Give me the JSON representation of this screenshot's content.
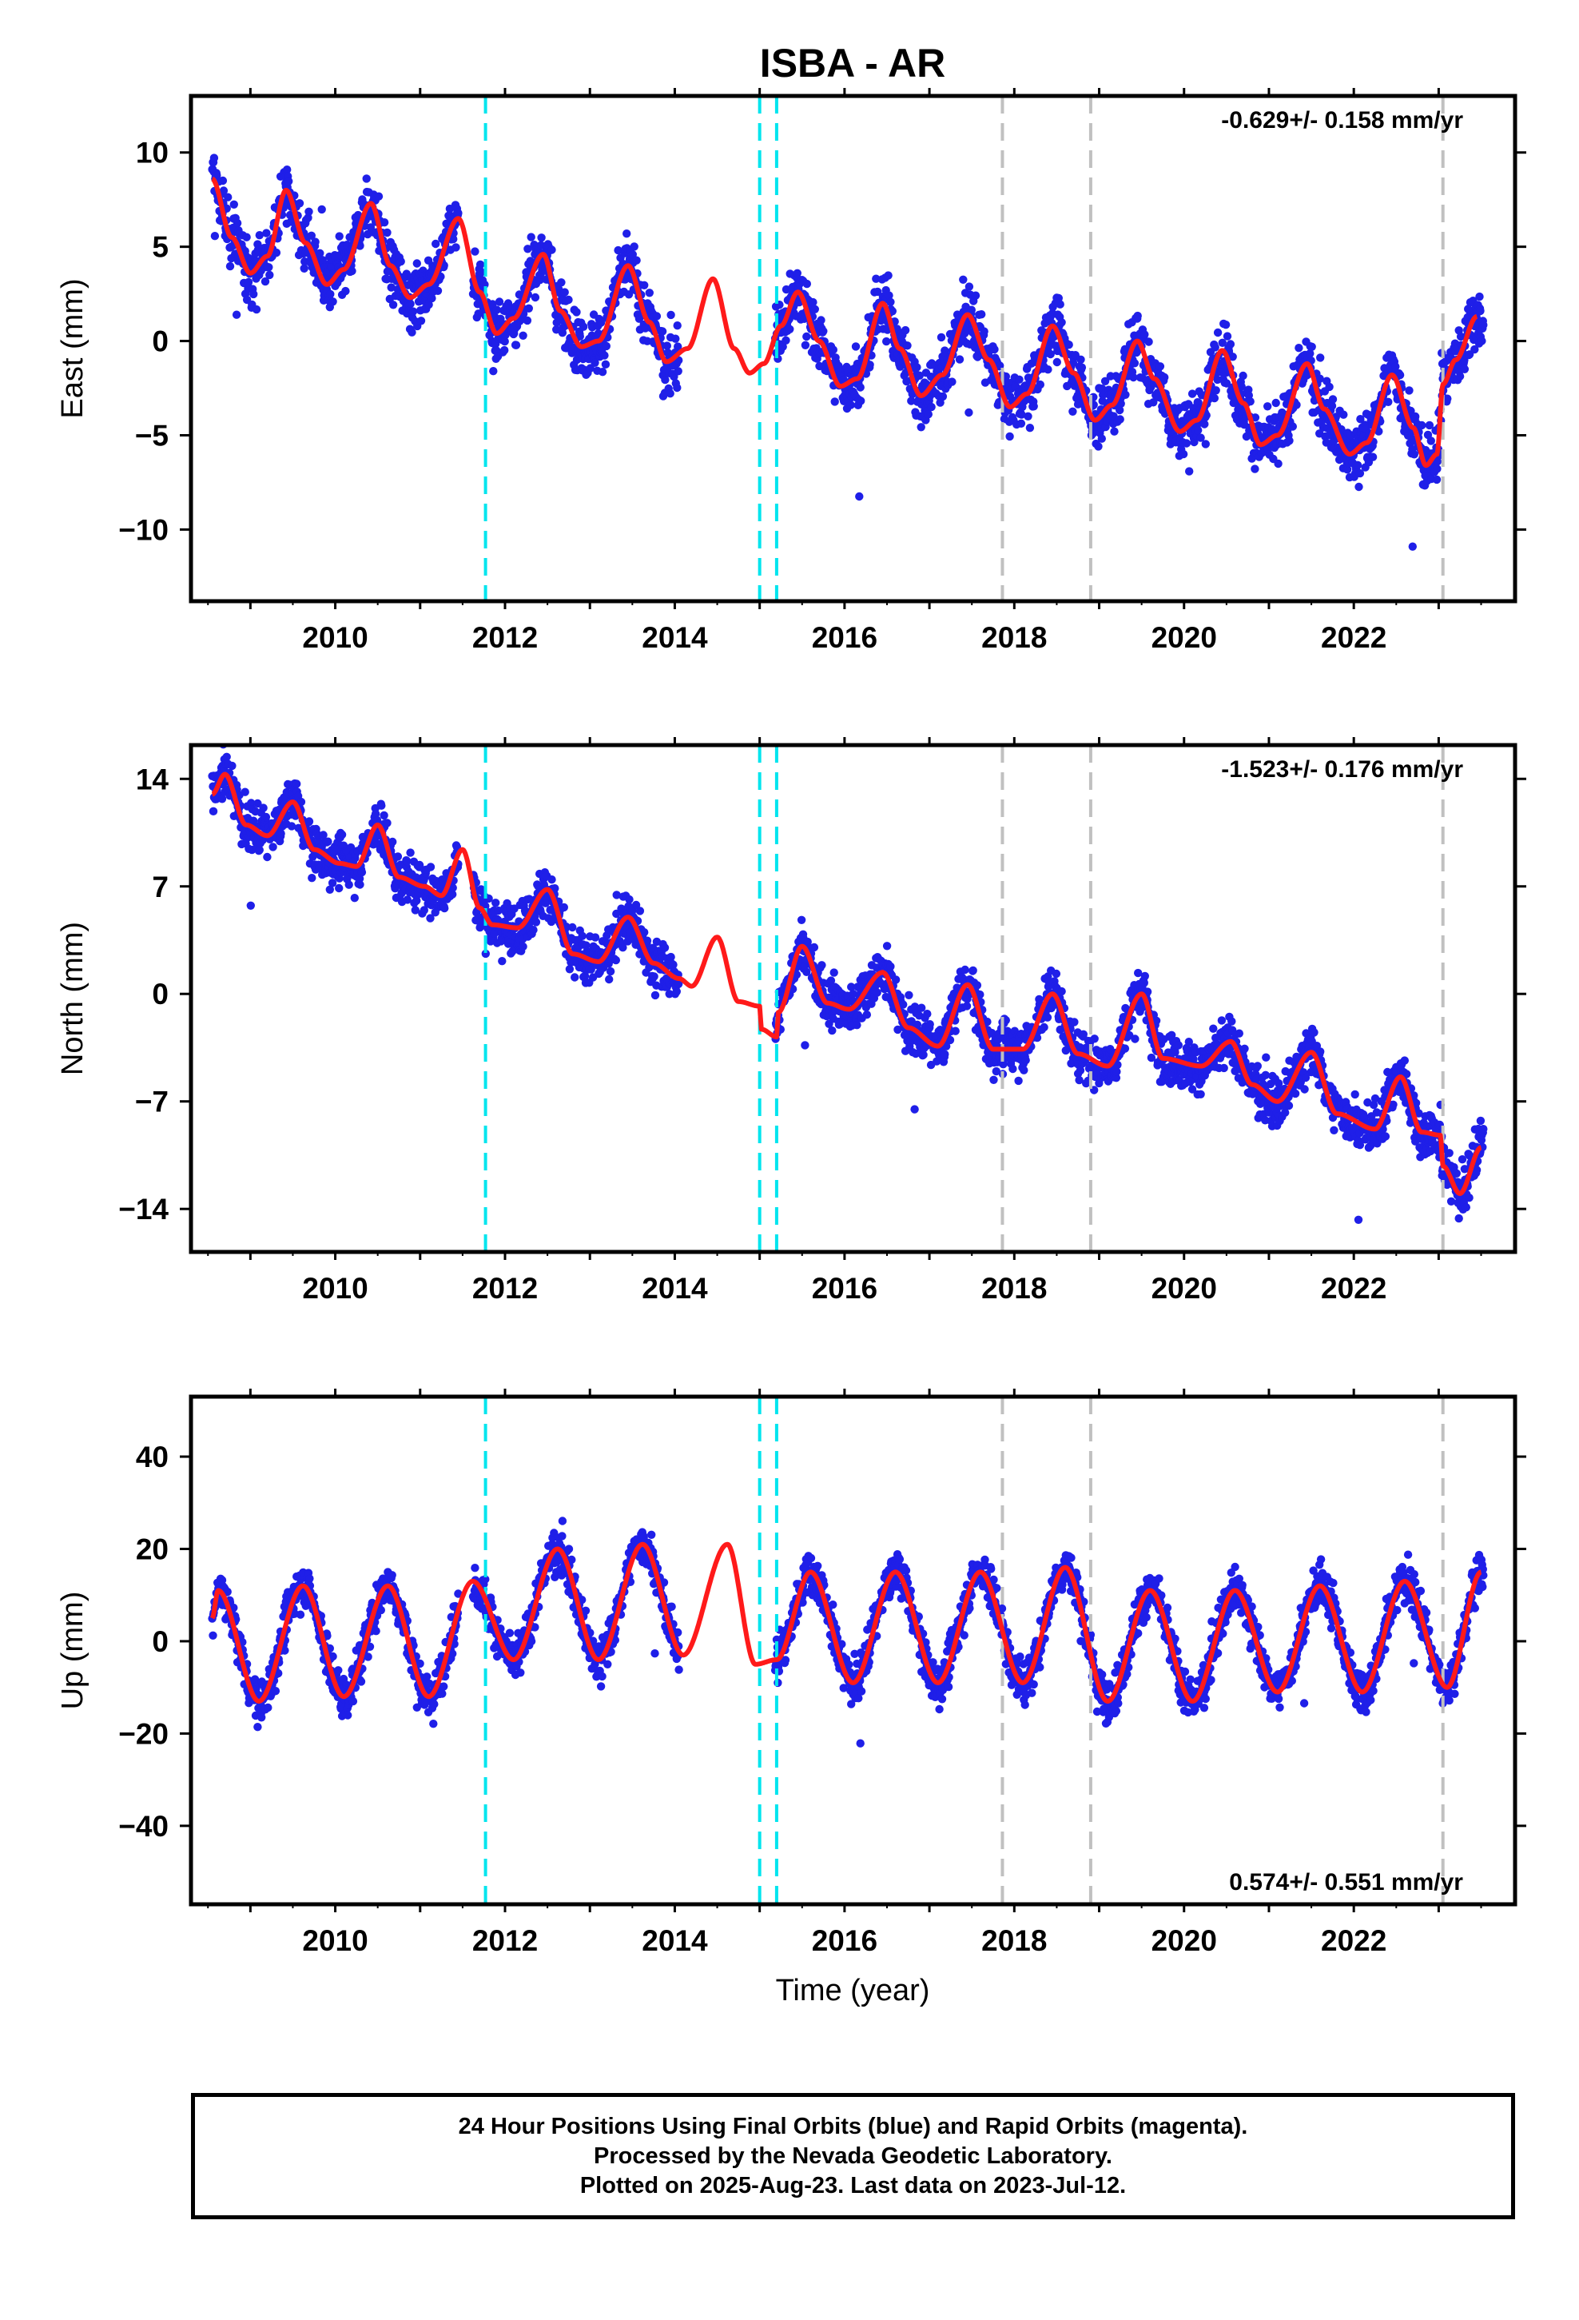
{
  "title": "ISBA - AR",
  "xlabel": "Time (year)",
  "colors": {
    "final_points": "#1f1fe8",
    "model_curve": "#ff1a1a",
    "equipment_change": "#00e5ee",
    "other_event": "#c0c0c0"
  },
  "chart_data": [
    {
      "type": "scatter",
      "ylabel": "East (mm)",
      "rate_text": "-0.629+/- 0.158 mm/yr",
      "rate_position": "top-right",
      "ylim": [
        -13.8,
        13
      ],
      "xlim": [
        2008.3,
        2023.9
      ],
      "xticks": [
        "2010",
        "2012",
        "2014",
        "2016",
        "2018",
        "2020",
        "2022"
      ],
      "yticks": [
        "10",
        "5",
        "0",
        "−5",
        "−10"
      ],
      "ytick_values": [
        10,
        5,
        0,
        -5,
        -10
      ],
      "model": {
        "x": [
          2008.55,
          2008.78,
          2009.0,
          2009.2,
          2009.42,
          2009.65,
          2009.9,
          2010.1,
          2010.42,
          2010.65,
          2010.88,
          2011.1,
          2011.45,
          2011.7,
          2011.9,
          2012.1,
          2012.45,
          2012.65,
          2012.9,
          2013.1,
          2013.45,
          2013.7,
          2013.9,
          2014.15,
          2014.45,
          2014.7,
          2014.88,
          2015.05,
          2015.25,
          2015.45,
          2015.7,
          2015.95,
          2016.15,
          2016.45,
          2016.65,
          2016.9,
          2017.15,
          2017.45,
          2017.7,
          2017.95,
          2018.15,
          2018.45,
          2018.7,
          2018.95,
          2019.15,
          2019.45,
          2019.65,
          2019.95,
          2020.15,
          2020.45,
          2020.7,
          2020.9,
          2021.1,
          2021.45,
          2021.65,
          2021.95,
          2022.15,
          2022.45,
          2022.7,
          2022.85,
          2022.98,
          2023.05,
          2023.2,
          2023.45
        ],
        "y": [
          8.6,
          5.5,
          3.6,
          4.5,
          8.0,
          5.2,
          3.0,
          3.8,
          7.3,
          4.0,
          2.3,
          3.0,
          6.5,
          2.6,
          0.4,
          1.2,
          4.6,
          1.6,
          -0.3,
          0.0,
          4.0,
          1.0,
          -1.1,
          -0.4,
          3.3,
          -0.4,
          -1.7,
          -1.2,
          0.8,
          2.6,
          0.0,
          -2.4,
          -2.0,
          2.0,
          -0.4,
          -2.9,
          -1.8,
          1.4,
          -1.0,
          -3.5,
          -2.8,
          0.8,
          -1.7,
          -4.2,
          -3.4,
          0.0,
          -2.0,
          -4.8,
          -4.2,
          -0.5,
          -3.3,
          -5.5,
          -5.0,
          -1.2,
          -3.6,
          -6.0,
          -5.4,
          -1.8,
          -4.6,
          -6.6,
          -6.0,
          -2.3,
          -1.0,
          1.3
        ]
      },
      "events_equipment": [
        2011.77,
        2015.0,
        2015.2
      ],
      "events_other": [
        2017.86,
        2018.9,
        2023.05
      ]
    },
    {
      "type": "scatter",
      "ylabel": "North (mm)",
      "rate_text": "-1.523+/- 0.176 mm/yr",
      "rate_position": "top-right",
      "ylim": [
        -16.8,
        16.2
      ],
      "xlim": [
        2008.3,
        2023.9
      ],
      "xticks": [
        "2010",
        "2012",
        "2014",
        "2016",
        "2018",
        "2020",
        "2022"
      ],
      "yticks": [
        "14",
        "7",
        "0",
        "−7",
        "−14"
      ],
      "ytick_values": [
        14,
        7,
        0,
        -7,
        -14
      ],
      "model": {
        "x": [
          2008.55,
          2008.7,
          2008.95,
          2009.2,
          2009.5,
          2009.75,
          2010.05,
          2010.25,
          2010.5,
          2010.75,
          2011.05,
          2011.25,
          2011.5,
          2011.7,
          2011.85,
          2012.15,
          2012.5,
          2012.8,
          2013.1,
          2013.45,
          2013.75,
          2014.05,
          2014.2,
          2014.5,
          2014.75,
          2015.0,
          2015.02,
          2015.2,
          2015.22,
          2015.5,
          2015.8,
          2016.05,
          2016.45,
          2016.75,
          2017.1,
          2017.45,
          2017.75,
          2018.1,
          2018.45,
          2018.75,
          2019.1,
          2019.5,
          2019.75,
          2020.2,
          2020.55,
          2020.8,
          2021.1,
          2021.5,
          2021.8,
          2022.25,
          2022.55,
          2022.8,
          2023.02,
          2023.05,
          2023.25,
          2023.5
        ],
        "y": [
          13.0,
          14.3,
          11.0,
          10.3,
          12.5,
          9.4,
          8.5,
          8.3,
          11.0,
          7.6,
          7.0,
          6.4,
          9.4,
          5.6,
          4.5,
          4.3,
          6.8,
          2.6,
          2.1,
          5.0,
          2.0,
          1.0,
          0.5,
          3.7,
          -0.5,
          -0.8,
          -2.3,
          -2.8,
          -1.2,
          3.1,
          -0.6,
          -1.0,
          1.4,
          -2.2,
          -3.4,
          0.6,
          -3.6,
          -3.6,
          0.0,
          -3.9,
          -4.7,
          0.0,
          -4.2,
          -4.7,
          -3.1,
          -5.9,
          -7.0,
          -3.8,
          -7.8,
          -8.8,
          -5.4,
          -9.0,
          -9.2,
          -11.2,
          -13.0,
          -10.0
        ]
      },
      "events_equipment": [
        2011.77,
        2015.0,
        2015.2
      ],
      "events_other": [
        2017.86,
        2018.9,
        2023.05
      ]
    },
    {
      "type": "scatter",
      "ylabel": "Up (mm)",
      "rate_text": "0.574+/- 0.551 mm/yr",
      "rate_position": "bottom-right",
      "ylim": [
        -57,
        53
      ],
      "xlim": [
        2008.3,
        2023.9
      ],
      "xticks": [
        "2010",
        "2012",
        "2014",
        "2016",
        "2018",
        "2020",
        "2022"
      ],
      "yticks": [
        "40",
        "20",
        "0",
        "−20",
        "−40"
      ],
      "ytick_values": [
        40,
        20,
        0,
        -20,
        -40
      ],
      "model": {
        "x": [
          2008.55,
          2008.62,
          2009.1,
          2009.62,
          2010.1,
          2010.62,
          2011.1,
          2011.62,
          2012.1,
          2012.62,
          2013.1,
          2013.62,
          2014.1,
          2014.62,
          2014.95,
          2015.2,
          2015.6,
          2016.1,
          2016.6,
          2017.1,
          2017.6,
          2018.1,
          2018.6,
          2019.1,
          2019.6,
          2020.1,
          2020.6,
          2021.1,
          2021.6,
          2022.1,
          2022.6,
          2023.1,
          2023.5
        ],
        "y": [
          5,
          11,
          -13,
          12,
          -12,
          12,
          -12,
          13,
          -4,
          20,
          -4,
          21,
          -3,
          21,
          -5,
          -4,
          15,
          -9,
          15,
          -9,
          15,
          -9,
          16,
          -13,
          11,
          -13,
          11,
          -11,
          12,
          -11,
          13,
          -10,
          15
        ]
      },
      "events_equipment": [
        2011.77,
        2015.0,
        2015.2
      ],
      "events_other": [
        2017.86,
        2018.9,
        2023.05
      ]
    }
  ],
  "footer": {
    "line1": "24 Hour Positions Using Final Orbits (blue) and Rapid Orbits (magenta).",
    "line2": "Processed by the Nevada Geodetic Laboratory.",
    "line3": "Plotted on 2025-Aug-23. Last data on 2023-Jul-12."
  }
}
